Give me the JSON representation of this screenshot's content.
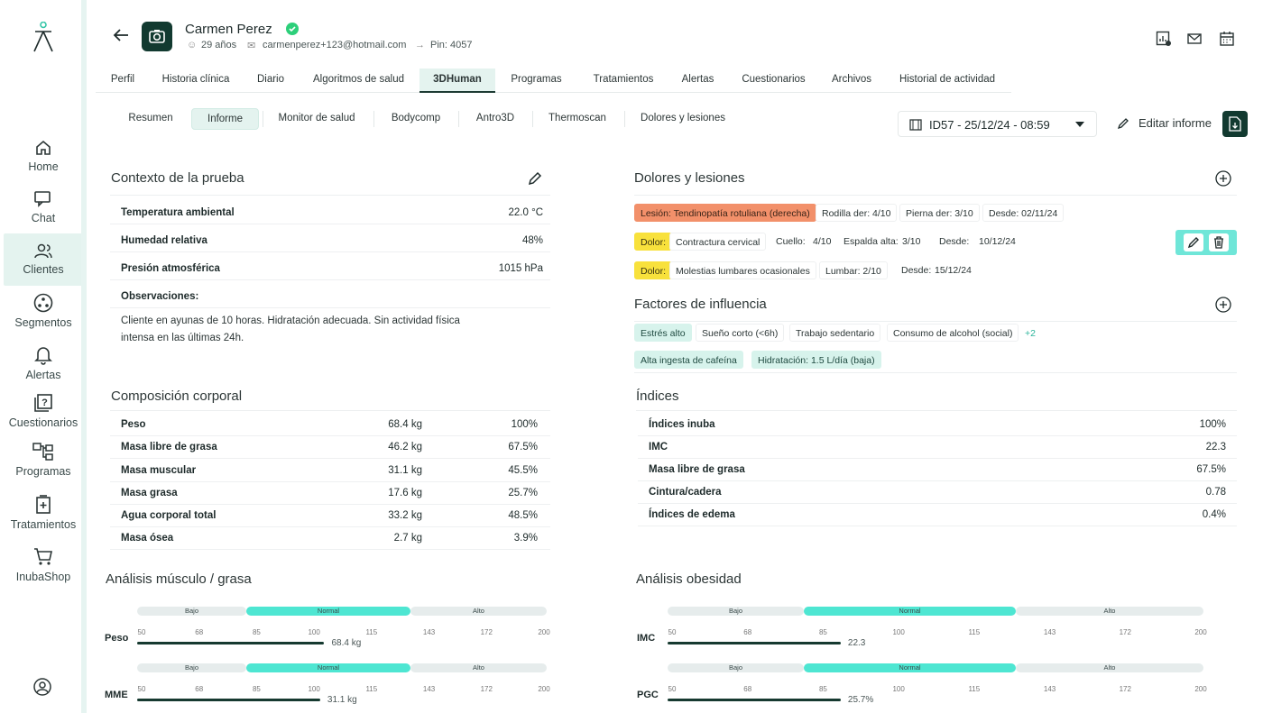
{
  "sidebar": {
    "items": [
      {
        "label": "Home",
        "icon": "home-icon"
      },
      {
        "label": "Chat",
        "icon": "chat-icon"
      },
      {
        "label": "Clientes",
        "icon": "clients-icon",
        "active": true
      },
      {
        "label": "Segmentos",
        "icon": "segments-icon"
      },
      {
        "label": "Alertas",
        "icon": "bell-icon"
      },
      {
        "label": "Cuestionarios",
        "icon": "questionnaire-icon"
      },
      {
        "label": "Programas",
        "icon": "programs-icon"
      },
      {
        "label": "Tratamientos",
        "icon": "treatments-icon"
      },
      {
        "label": "InubaShop",
        "icon": "cart-icon"
      }
    ]
  },
  "patient": {
    "name": "Carmen Perez",
    "age": "29 años",
    "email": "carmenperez+123@hotmail.com",
    "pin": "Pin: 4057"
  },
  "tabs": [
    "Perfil",
    "Historia clínica",
    "Diario",
    "Algoritmos de salud",
    "3DHuman",
    "Programas",
    "Tratamientos",
    "Alertas",
    "Cuestionarios",
    "Archivos",
    "Historial de actividad"
  ],
  "active_tab": "3DHuman",
  "subtabs": [
    "Resumen",
    "Informe",
    "Monitor de salud",
    "Bodycomp",
    "Antro3D",
    "Thermoscan",
    "Dolores y lesiones"
  ],
  "active_subtab": "Informe",
  "report_select": "ID57 - 25/12/24 - 08:59",
  "edit_report": "Editar informe",
  "context": {
    "title": "Contexto de la prueba",
    "rows": [
      {
        "k": "Temperatura ambiental",
        "v": "22.0 °C"
      },
      {
        "k": "Humedad relativa",
        "v": "48%"
      },
      {
        "k": "Presión atmosférica",
        "v": "1015 hPa"
      }
    ],
    "obs_label": "Observaciones:",
    "obs_text": "Cliente en ayunas de 10 horas. Hidratación adecuada. Sin actividad física intensa en las últimas 24h."
  },
  "pains": {
    "title": "Dolores y lesiones",
    "r1": {
      "tag": "Lesión: Tendinopatía rotuliana (derecha)",
      "a": "Rodilla der: 4/10",
      "b": "Pierna der: 3/10",
      "c": "Desde: 02/11/24"
    },
    "r2": {
      "tag": "Dolor:",
      "name": "Contractura cervical",
      "a1": "Cuello:",
      "a2": "4/10",
      "b1": "Espalda alta:",
      "b2": "3/10",
      "c1": "Desde:",
      "c2": "10/12/24"
    },
    "r3": {
      "tag": "Dolor:",
      "name": "Molestias lumbares ocasionales",
      "a": "Lumbar: 2/10",
      "c1": "Desde:",
      "c2": "15/12/24"
    }
  },
  "factors": {
    "title": "Factores de influencia",
    "items": [
      "Estrés alto",
      "Sueño corto (<6h)",
      "Trabajo sedentario",
      "Consumo de alcohol (social)",
      "Alta ingesta de cafeína",
      "Hidratación: 1.5 L/día (baja)"
    ],
    "more": "+2"
  },
  "composition": {
    "title": "Composición corporal",
    "rows": [
      {
        "k": "Peso",
        "v": "68.4 kg",
        "p": "100%"
      },
      {
        "k": "Masa libre de grasa",
        "v": "46.2 kg",
        "p": "67.5%"
      },
      {
        "k": "Masa muscular",
        "v": "31.1 kg",
        "p": "45.5%"
      },
      {
        "k": "Masa grasa",
        "v": "17.6 kg",
        "p": "25.7%"
      },
      {
        "k": "Agua corporal total",
        "v": "33.2 kg",
        "p": "48.5%"
      },
      {
        "k": "Masa ósea",
        "v": "2.7 kg",
        "p": "3.9%"
      }
    ]
  },
  "indices": {
    "title": "Índices",
    "rows": [
      {
        "k": "Índices inuba",
        "v": "100%"
      },
      {
        "k": "IMC",
        "v": "22.3"
      },
      {
        "k": "Masa libre de grasa",
        "v": "67.5%"
      },
      {
        "k": "Cintura/cadera",
        "v": "0.78"
      },
      {
        "k": "Índices de edema",
        "v": "0.4%"
      }
    ]
  },
  "bands": {
    "low": "Bajo",
    "normal": "Normal",
    "high": "Alto"
  },
  "ticks": [
    "50",
    "68",
    "85",
    "100",
    "115",
    "143",
    "172",
    "200"
  ],
  "muscle": {
    "title": "Análisis  músculo / grasa",
    "g": [
      {
        "label": "Peso",
        "value_text": "68.4 kg",
        "fill": 0.455
      },
      {
        "label": "MME",
        "value_text": "31.1 kg",
        "fill": 0.445
      }
    ]
  },
  "obesity": {
    "title": "Análisis obesidad",
    "g": [
      {
        "label": "IMC",
        "value_text": "22.3",
        "fill": 0.322
      },
      {
        "label": "PGC",
        "value_text": "25.7%",
        "fill": 0.322
      }
    ]
  },
  "colors": {
    "brand_dark": "#123a30",
    "accent_teal": "#4ee6d2",
    "injury": "#f2906a",
    "pain": "#f8e13c"
  }
}
